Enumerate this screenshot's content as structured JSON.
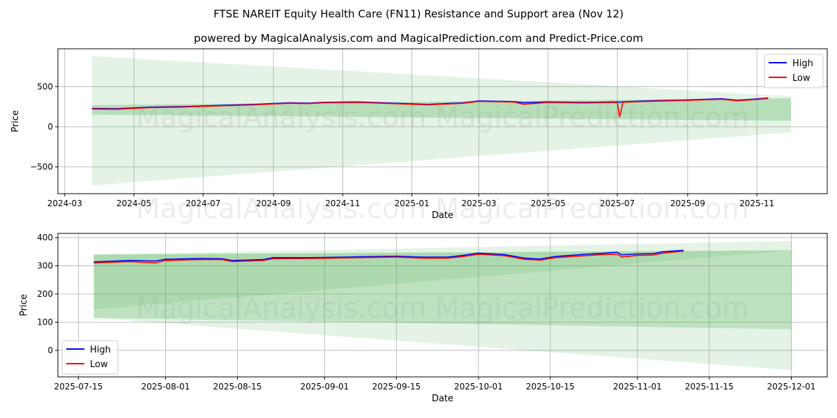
{
  "title": "FTSE NAREIT Equity Health Care (FN11) Resistance and Support area (Nov 12)",
  "subtitle": "powered by MagicalAnalysis.com and MagicalPrediction.com and Predict-Price.com",
  "watermark": "MagicalAnalysis.com   MagicalPrediction.com",
  "colors": {
    "high": "#0000ff",
    "low": "#ff0000",
    "band": "#4caf50"
  },
  "chart_data": [
    {
      "type": "line",
      "xlabel": "Date",
      "ylabel": "Price",
      "xlim": [
        "2024-02-24",
        "2026-01-02"
      ],
      "ylim": [
        -833,
        971
      ],
      "grid": true,
      "legend": {
        "placement": "top-right",
        "entries": [
          "High",
          "Low"
        ]
      },
      "xticks": [
        "2024-03",
        "2024-05",
        "2024-07",
        "2024-09",
        "2024-11",
        "2025-01",
        "2025-03",
        "2025-05",
        "2025-07",
        "2025-09",
        "2025-11"
      ],
      "yticks": [
        -500,
        0,
        500
      ],
      "ytick_labels": [
        "−500",
        "0",
        "500"
      ],
      "bands": [
        {
          "x": [
            "2024-03-25",
            "2025-12-01"
          ],
          "upper": [
            880,
            380
          ],
          "lower": [
            -730,
            -70
          ],
          "opacity": 0.15
        },
        {
          "x": [
            "2024-03-25",
            "2025-12-01"
          ],
          "upper": [
            270,
            355
          ],
          "lower": [
            150,
            75
          ],
          "opacity": 0.3
        }
      ],
      "series": [
        {
          "name": "High",
          "x": [
            "2024-03-25",
            "2024-04-15",
            "2024-05-15",
            "2024-06-15",
            "2024-07-15",
            "2024-08-15",
            "2024-09-15",
            "2024-10-01",
            "2024-10-15",
            "2024-11-15",
            "2024-12-15",
            "2025-01-15",
            "2025-02-15",
            "2025-03-01",
            "2025-04-01",
            "2025-04-09",
            "2025-05-01",
            "2025-06-01",
            "2025-07-01",
            "2025-07-03",
            "2025-07-06",
            "2025-08-01",
            "2025-09-01",
            "2025-10-01",
            "2025-10-15",
            "2025-11-11"
          ],
          "values": [
            228,
            224,
            244,
            252,
            266,
            279,
            299,
            294,
            304,
            309,
            294,
            279,
            299,
            322,
            314,
            300,
            309,
            302,
            309,
            305,
            312,
            324,
            334,
            349,
            329,
            358
          ]
        },
        {
          "name": "Low",
          "x": [
            "2024-03-25",
            "2024-04-15",
            "2024-05-15",
            "2024-06-15",
            "2024-07-15",
            "2024-08-15",
            "2024-09-15",
            "2024-10-01",
            "2024-10-15",
            "2024-11-15",
            "2024-12-15",
            "2025-01-15",
            "2025-02-15",
            "2025-03-01",
            "2025-04-01",
            "2025-04-09",
            "2025-05-01",
            "2025-06-01",
            "2025-07-01",
            "2025-07-03",
            "2025-07-06",
            "2025-08-01",
            "2025-09-01",
            "2025-10-01",
            "2025-10-15",
            "2025-11-11"
          ],
          "values": [
            222,
            218,
            238,
            246,
            260,
            273,
            293,
            288,
            298,
            303,
            288,
            273,
            293,
            316,
            308,
            280,
            303,
            296,
            303,
            120,
            306,
            318,
            328,
            343,
            323,
            352
          ]
        }
      ]
    },
    {
      "type": "line",
      "xlabel": "Date",
      "ylabel": "Price",
      "xlim": [
        "2025-07-11",
        "2025-12-08"
      ],
      "ylim": [
        -94,
        415
      ],
      "grid": true,
      "legend": {
        "placement": "bottom-left",
        "entries": [
          "High",
          "Low"
        ]
      },
      "xticks": [
        "2025-07-15",
        "2025-08-01",
        "2025-08-15",
        "2025-09-01",
        "2025-09-15",
        "2025-10-01",
        "2025-10-15",
        "2025-11-01",
        "2025-11-15",
        "2025-12-01"
      ],
      "yticks": [
        0,
        100,
        200,
        300,
        400
      ],
      "ytick_labels": [
        "0",
        "100",
        "200",
        "300",
        "400"
      ],
      "bands": [
        {
          "x": [
            "2025-07-18",
            "2025-12-01"
          ],
          "upper": [
            340,
            388
          ],
          "lower": [
            115,
            -70
          ],
          "opacity": 0.15
        },
        {
          "x": [
            "2025-07-18",
            "2025-12-01"
          ],
          "upper": [
            340,
            355
          ],
          "lower": [
            115,
            75
          ],
          "opacity": 0.25
        },
        {
          "x": [
            "2025-07-18",
            "2025-12-01"
          ],
          "upper": [
            340,
            355
          ],
          "lower": [
            145,
            355
          ],
          "opacity": 0.15
        }
      ],
      "series": [
        {
          "name": "High",
          "x": [
            "2025-07-18",
            "2025-07-25",
            "2025-07-30",
            "2025-08-01",
            "2025-08-08",
            "2025-08-12",
            "2025-08-14",
            "2025-08-20",
            "2025-08-22",
            "2025-08-30",
            "2025-09-08",
            "2025-09-15",
            "2025-09-20",
            "2025-09-25",
            "2025-09-28",
            "2025-10-01",
            "2025-10-06",
            "2025-10-10",
            "2025-10-13",
            "2025-10-16",
            "2025-10-22",
            "2025-10-25",
            "2025-10-28",
            "2025-10-29",
            "2025-11-01",
            "2025-11-04",
            "2025-11-06",
            "2025-11-10"
          ],
          "values": [
            314,
            319,
            317,
            323,
            326,
            325,
            319,
            322,
            329,
            329,
            332,
            334,
            331,
            331,
            337,
            345,
            340,
            327,
            324,
            333,
            341,
            344,
            348,
            339,
            342,
            343,
            350,
            355
          ]
        },
        {
          "name": "Low",
          "x": [
            "2025-07-18",
            "2025-07-25",
            "2025-07-30",
            "2025-08-01",
            "2025-08-08",
            "2025-08-12",
            "2025-08-14",
            "2025-08-20",
            "2025-08-22",
            "2025-08-30",
            "2025-09-08",
            "2025-09-15",
            "2025-09-20",
            "2025-09-25",
            "2025-09-28",
            "2025-10-01",
            "2025-10-06",
            "2025-10-10",
            "2025-10-13",
            "2025-10-16",
            "2025-10-22",
            "2025-10-25",
            "2025-10-28",
            "2025-10-29",
            "2025-11-01",
            "2025-11-04",
            "2025-11-06",
            "2025-11-10"
          ],
          "values": [
            310,
            315,
            310,
            319,
            322,
            322,
            315,
            319,
            325,
            326,
            329,
            331,
            327,
            327,
            333,
            341,
            336,
            323,
            320,
            329,
            336,
            340,
            341,
            331,
            337,
            338,
            345,
            352
          ]
        }
      ]
    }
  ]
}
